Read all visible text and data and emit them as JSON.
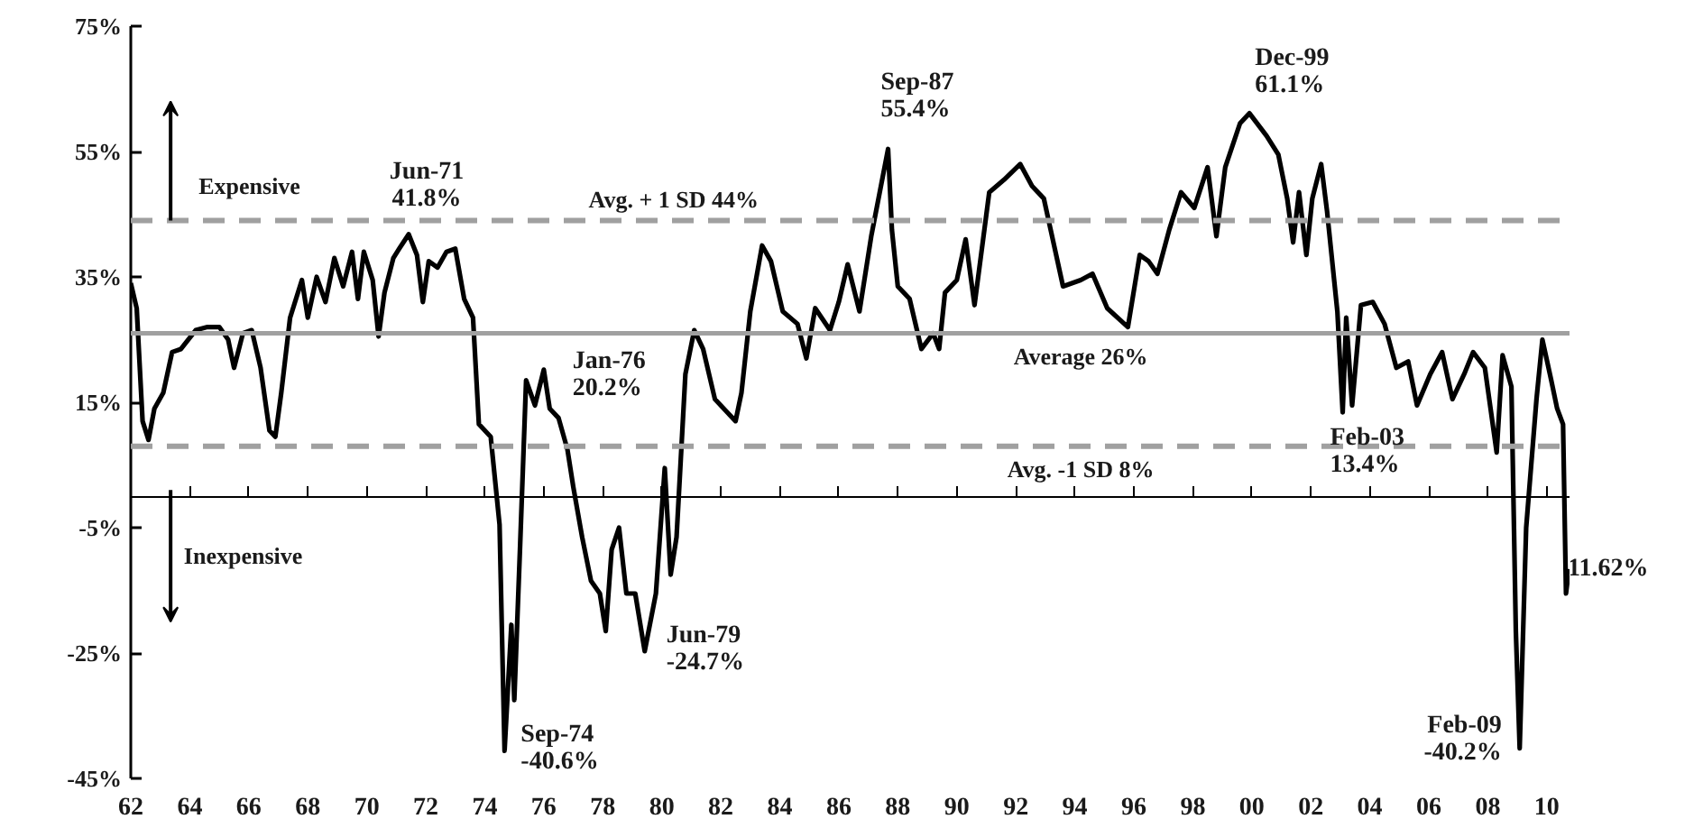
{
  "chart_data": {
    "type": "line",
    "color": "#000000",
    "line_style": "solid",
    "grid": false,
    "x": [
      1962.0,
      1962.2,
      1962.4,
      1962.6,
      1962.8,
      1963.1,
      1963.4,
      1963.7,
      1964.2,
      1964.6,
      1965.0,
      1965.3,
      1965.5,
      1965.8,
      1966.1,
      1966.4,
      1966.7,
      1966.9,
      1967.1,
      1967.4,
      1967.8,
      1968.0,
      1968.3,
      1968.6,
      1968.9,
      1969.2,
      1969.5,
      1969.7,
      1969.9,
      1970.2,
      1970.4,
      1970.6,
      1970.9,
      1971.1,
      1971.42,
      1971.7,
      1971.9,
      1972.1,
      1972.4,
      1972.7,
      1973.0,
      1973.3,
      1973.6,
      1973.8,
      1974.2,
      1974.5,
      1974.67,
      1974.9,
      1975.0,
      1975.2,
      1975.4,
      1975.7,
      1976.0,
      1976.2,
      1976.5,
      1976.8,
      1977.0,
      1977.3,
      1977.6,
      1977.9,
      1978.1,
      1978.3,
      1978.55,
      1978.8,
      1979.1,
      1979.42,
      1979.8,
      1980.1,
      1980.3,
      1980.5,
      1980.8,
      1981.1,
      1981.4,
      1981.8,
      1982.2,
      1982.5,
      1982.7,
      1983.0,
      1983.4,
      1983.7,
      1984.1,
      1984.6,
      1984.9,
      1985.2,
      1985.7,
      1986.0,
      1986.3,
      1986.7,
      1987.1,
      1987.67,
      1987.8,
      1988.0,
      1988.4,
      1988.8,
      1989.2,
      1989.4,
      1989.6,
      1990.0,
      1990.3,
      1990.6,
      1991.1,
      1991.6,
      1992.15,
      1992.55,
      1992.95,
      1993.6,
      1994.2,
      1994.6,
      1995.1,
      1995.8,
      1996.2,
      1996.5,
      1996.8,
      1997.2,
      1997.6,
      1998.05,
      1998.5,
      1998.8,
      1999.1,
      1999.6,
      1999.92,
      2000.5,
      2000.9,
      2001.2,
      2001.4,
      2001.6,
      2001.85,
      2002.05,
      2002.35,
      2002.55,
      2002.9,
      2003.08,
      2003.2,
      2003.4,
      2003.7,
      2004.1,
      2004.5,
      2004.9,
      2005.3,
      2005.6,
      2006.05,
      2006.45,
      2006.8,
      2007.2,
      2007.5,
      2007.9,
      2008.3,
      2008.5,
      2008.8,
      2008.95,
      2009.08,
      2009.3,
      2009.65,
      2009.85,
      2010.15,
      2010.35,
      2010.55,
      2010.65,
      2010.75
    ],
    "values": [
      34,
      30,
      12,
      9,
      14,
      16.5,
      23,
      23.5,
      26.5,
      27,
      27,
      25,
      20.5,
      26,
      26.5,
      20.5,
      10.5,
      9.5,
      16.5,
      28.5,
      34.5,
      28.5,
      35,
      31,
      38,
      33.5,
      39,
      31.5,
      39,
      34.5,
      25.5,
      32.5,
      38,
      39.5,
      41.8,
      38.5,
      31,
      37.5,
      36.5,
      39,
      39.5,
      31.5,
      28.5,
      11.5,
      9.5,
      -4.5,
      -40.6,
      -20.5,
      -32.5,
      -7.5,
      18.5,
      14.5,
      20.2,
      14,
      12.5,
      7.5,
      1.5,
      -6.5,
      -13.5,
      -15.5,
      -21.5,
      -8.5,
      -5,
      -15.5,
      -15.5,
      -24.7,
      -15.5,
      4.5,
      -12.5,
      -6.5,
      19.5,
      26.5,
      23.5,
      15.5,
      13.5,
      12,
      16.5,
      29.5,
      40,
      37.5,
      29.5,
      27.5,
      22,
      30,
      26.5,
      31,
      37,
      29.5,
      41.5,
      55.4,
      42.5,
      33.5,
      31.5,
      23.5,
      26,
      23.5,
      32.5,
      34.5,
      41,
      30.5,
      48.5,
      50.5,
      53,
      49.5,
      47.5,
      33.5,
      34.5,
      35.5,
      30,
      27,
      38.5,
      37.5,
      35.5,
      42.5,
      48.5,
      46,
      52.5,
      41.5,
      52.5,
      59.5,
      61.1,
      57.5,
      54.5,
      47.5,
      40.5,
      48.5,
      38.5,
      47.5,
      53,
      45.5,
      29.5,
      13.4,
      28.5,
      14.5,
      30.5,
      31,
      27.5,
      20.5,
      21.5,
      14.5,
      19.5,
      23,
      15.5,
      19.5,
      23,
      20.5,
      7,
      22.5,
      17.5,
      -21.5,
      -40.2,
      -5,
      15.5,
      25,
      18.5,
      14,
      11.5,
      -15.5,
      -11.6
    ],
    "xlim": [
      1962,
      2010.8
    ],
    "xticks": [
      {
        "value": 1962,
        "label": "62"
      },
      {
        "value": 1964,
        "label": "64"
      },
      {
        "value": 1966,
        "label": "66"
      },
      {
        "value": 1968,
        "label": "68"
      },
      {
        "value": 1970,
        "label": "70"
      },
      {
        "value": 1972,
        "label": "72"
      },
      {
        "value": 1974,
        "label": "74"
      },
      {
        "value": 1976,
        "label": "76"
      },
      {
        "value": 1978,
        "label": "78"
      },
      {
        "value": 1980,
        "label": "80"
      },
      {
        "value": 1982,
        "label": "82"
      },
      {
        "value": 1984,
        "label": "84"
      },
      {
        "value": 1986,
        "label": "86"
      },
      {
        "value": 1988,
        "label": "88"
      },
      {
        "value": 1990,
        "label": "90"
      },
      {
        "value": 1992,
        "label": "92"
      },
      {
        "value": 1994,
        "label": "94"
      },
      {
        "value": 1996,
        "label": "96"
      },
      {
        "value": 1998,
        "label": "98"
      },
      {
        "value": 2000,
        "label": "00"
      },
      {
        "value": 2002,
        "label": "02"
      },
      {
        "value": 2004,
        "label": "04"
      },
      {
        "value": 2006,
        "label": "06"
      },
      {
        "value": 2008,
        "label": "08"
      },
      {
        "value": 2010,
        "label": "10"
      }
    ],
    "ylim": [
      -45,
      75
    ],
    "yticks": [
      {
        "value": -45,
        "label": "-45%"
      },
      {
        "value": -25,
        "label": "-25%"
      },
      {
        "value": -5,
        "label": "-5%"
      },
      {
        "value": 15,
        "label": "15%"
      },
      {
        "value": 35,
        "label": "35%"
      },
      {
        "value": 55,
        "label": "55%"
      },
      {
        "value": 75,
        "label": "75%"
      }
    ],
    "ref_lines": [
      {
        "axis": "y",
        "value": 44,
        "label": "Avg. + 1 SD   44%",
        "color": "#a0a0a0",
        "line_style": "dashed"
      },
      {
        "axis": "y",
        "value": 26,
        "label": "Average   26%",
        "color": "#a0a0a0",
        "line_style": "solid"
      },
      {
        "axis": "y",
        "value": 8,
        "label": "Avg. -1 SD   8%",
        "color": "#a0a0a0",
        "line_style": "dashed"
      }
    ],
    "annotations": [
      {
        "text": "Jun-71\n41.8%",
        "x": 1971.42,
        "y": 41.8
      },
      {
        "text": "Sep-74\n-40.6%",
        "x": 1974.67,
        "y": -40.6
      },
      {
        "text": "Jan-76\n20.2%",
        "x": 1976.0,
        "y": 20.2
      },
      {
        "text": "Jun-79\n-24.7%",
        "x": 1979.42,
        "y": -24.7
      },
      {
        "text": "Sep-87\n55.4%",
        "x": 1987.67,
        "y": 55.4
      },
      {
        "text": "Dec-99\n61.1%",
        "x": 1999.92,
        "y": 61.1
      },
      {
        "text": "Feb-03\n13.4%",
        "x": 2003.08,
        "y": 13.4
      },
      {
        "text": "Feb-09\n-40.2%",
        "x": 2009.08,
        "y": -40.2
      },
      {
        "text": "11.62%",
        "x": 2010.75,
        "y": -11.6
      },
      "Expensive",
      "Inexpensive"
    ]
  }
}
